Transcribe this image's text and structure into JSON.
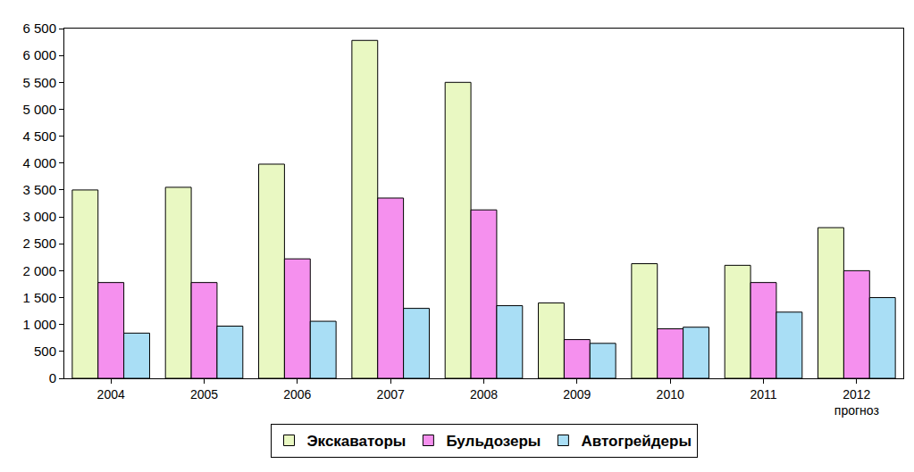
{
  "chart_data": {
    "type": "bar",
    "categories": [
      "2004",
      "2005",
      "2006",
      "2007",
      "2008",
      "2009",
      "2010",
      "2011",
      "2012\nпрогноз"
    ],
    "series": [
      {
        "name": "Экскаваторы",
        "color": "#e9f8c2",
        "values": [
          3500,
          3550,
          3980,
          6280,
          5500,
          1400,
          2130,
          2100,
          2800
        ]
      },
      {
        "name": "Бульдозеры",
        "color": "#f590ee",
        "values": [
          1780,
          1780,
          2220,
          3350,
          3130,
          720,
          920,
          1780,
          2000
        ]
      },
      {
        "name": "Автогрейдеры",
        "color": "#a9def5",
        "values": [
          840,
          970,
          1060,
          1300,
          1350,
          650,
          950,
          1230,
          1500
        ]
      }
    ],
    "ylim": [
      0,
      6500
    ],
    "yticks": [
      0,
      500,
      {
        "value": 1000,
        "label": "1 000"
      },
      {
        "value": 1500,
        "label": "1 500"
      },
      {
        "value": 2000,
        "label": "2 000"
      },
      {
        "value": 2500,
        "label": "2 500"
      },
      {
        "value": 3000,
        "label": "3 000"
      },
      {
        "value": 3500,
        "label": "3 500"
      },
      {
        "value": 4000,
        "label": "4 000"
      },
      {
        "value": 4500,
        "label": "4 500"
      },
      {
        "value": 5000,
        "label": "5 000"
      },
      {
        "value": 5500,
        "label": "5 500"
      },
      {
        "value": 6000,
        "label": "6 000"
      },
      {
        "value": 6500,
        "label": "6 500"
      }
    ],
    "grid": false,
    "legend": "bottom"
  }
}
